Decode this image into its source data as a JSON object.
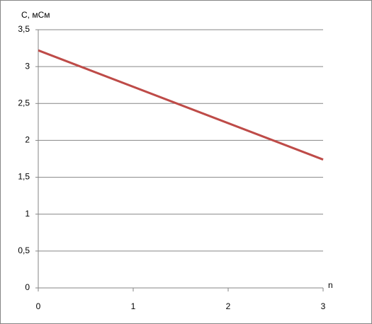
{
  "chart_data": {
    "type": "line",
    "y_label": "C, мСм",
    "x_label": "n",
    "x": [
      0,
      3
    ],
    "series": [
      {
        "name": "C",
        "color": "#be4b48",
        "values": [
          3.22,
          1.74
        ]
      }
    ],
    "xlim": [
      0,
      3
    ],
    "xticks": [
      0,
      1,
      2,
      3
    ],
    "ylim": [
      0,
      3.5
    ],
    "yticks": [
      0,
      {
        "value": 0.5,
        "label": "0,5"
      },
      1,
      {
        "value": 1.5,
        "label": "1,5"
      },
      2,
      {
        "value": 2.5,
        "label": "2,5"
      },
      3,
      {
        "value": 3.5,
        "label": "3,5"
      }
    ],
    "grid": true
  }
}
